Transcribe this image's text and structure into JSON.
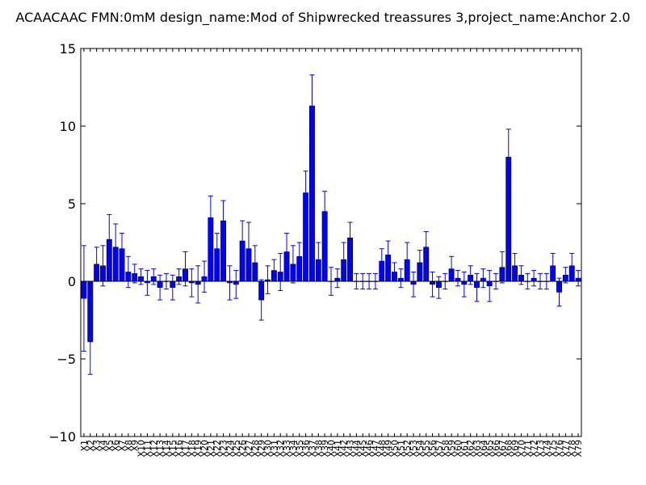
{
  "title": "ACAACAAC  FMN:0mM  design_name:Mod of Shipwrecked treassures 3,project_name:Anchor 2.0",
  "chart_data": {
    "type": "bar",
    "title": "ACAACAAC  FMN:0mM  design_name:Mod of Shipwrecked treassures 3,project_name:Anchor 2.0",
    "xlabel": "",
    "ylabel": "",
    "ylim": [
      -10,
      15
    ],
    "yticks": [
      -10,
      -5,
      0,
      5,
      10,
      15
    ],
    "bar_color": "#0000ff",
    "error_color": "#0000ff",
    "categories": [
      "X1",
      "X2",
      "X3",
      "X4",
      "X5",
      "X6",
      "X7",
      "X8",
      "X9",
      "X10",
      "X11",
      "X12",
      "X13",
      "X14",
      "X15",
      "X16",
      "X17",
      "X18",
      "X19",
      "X20",
      "X21",
      "X22",
      "X23",
      "X24",
      "X25",
      "X26",
      "X27",
      "X28",
      "X29",
      "X30",
      "X31",
      "X32",
      "X33",
      "X34",
      "X35",
      "X36",
      "X37",
      "X38",
      "X39",
      "X40",
      "X41",
      "X42",
      "X43",
      "X44",
      "X45",
      "X46",
      "X47",
      "X48",
      "X49",
      "X50",
      "X51",
      "X52",
      "X53",
      "X54",
      "X55",
      "X56",
      "X57",
      "X58",
      "X59",
      "X60",
      "X61",
      "X62",
      "X63",
      "X64",
      "X65",
      "X66",
      "X67",
      "X68",
      "X69",
      "X70",
      "X71",
      "X72",
      "X73",
      "X74",
      "X75",
      "X76",
      "X77",
      "X78",
      "X79"
    ],
    "values": [
      -1.1,
      -3.9,
      1.1,
      1.0,
      2.7,
      2.2,
      2.1,
      0.6,
      0.5,
      0.3,
      -0.1,
      0.3,
      -0.4,
      0.0,
      -0.4,
      0.3,
      0.8,
      -0.1,
      -0.2,
      0.3,
      4.1,
      2.1,
      3.9,
      -0.1,
      -0.2,
      2.6,
      2.1,
      1.2,
      -1.2,
      0.1,
      0.7,
      0.6,
      1.9,
      1.1,
      1.6,
      5.7,
      11.3,
      1.4,
      4.5,
      0.0,
      0.2,
      1.4,
      2.8,
      0.0,
      0.0,
      0.0,
      0.0,
      1.3,
      1.7,
      0.6,
      0.2,
      1.4,
      -0.2,
      1.2,
      2.2,
      -0.2,
      -0.4,
      0.0,
      0.8,
      0.2,
      -0.2,
      0.4,
      -0.4,
      0.2,
      -0.3,
      0.0,
      0.9,
      8.0,
      1.0,
      0.4,
      0.0,
      0.2,
      0.0,
      0.0,
      1.0,
      -0.7,
      0.4,
      1.0,
      0.2
    ],
    "errors": [
      3.4,
      2.1,
      1.1,
      1.3,
      1.6,
      1.5,
      1.0,
      1.0,
      0.6,
      0.5,
      0.8,
      0.5,
      0.8,
      0.5,
      0.8,
      0.5,
      1.1,
      0.9,
      1.2,
      1.0,
      1.4,
      1.0,
      1.3,
      1.1,
      0.9,
      1.3,
      1.7,
      1.1,
      1.3,
      0.9,
      0.7,
      1.2,
      1.2,
      1.2,
      0.9,
      1.4,
      2.0,
      1.1,
      1.3,
      0.9,
      0.6,
      1.1,
      1.0,
      0.5,
      0.5,
      0.5,
      0.5,
      0.8,
      0.9,
      0.6,
      0.6,
      1.1,
      0.8,
      0.8,
      1.0,
      0.8,
      0.7,
      0.5,
      0.8,
      0.5,
      0.8,
      0.6,
      0.9,
      0.6,
      1.0,
      0.5,
      1.0,
      1.8,
      0.8,
      0.6,
      0.5,
      0.5,
      0.5,
      0.5,
      0.8,
      0.9,
      0.5,
      0.8,
      0.5
    ]
  }
}
